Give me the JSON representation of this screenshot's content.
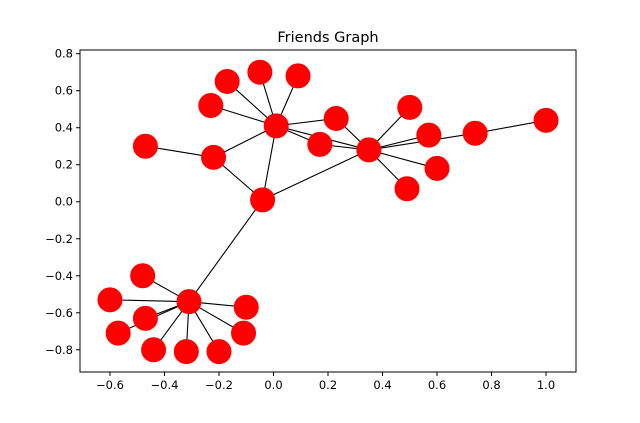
{
  "chart_data": {
    "type": "scatter",
    "title": "Friends Graph",
    "xlabel": "",
    "ylabel": "",
    "xlim": [
      -0.71,
      1.11
    ],
    "ylim": [
      -0.92,
      0.82
    ],
    "xticks": [
      -0.6,
      -0.4,
      -0.2,
      0.0,
      0.2,
      0.4,
      0.6,
      0.8,
      1.0
    ],
    "yticks": [
      -0.8,
      -0.6,
      -0.4,
      -0.2,
      0.0,
      0.2,
      0.4,
      0.6,
      0.8
    ],
    "xtick_labels": [
      "−0.6",
      "−0.4",
      "−0.2",
      "0.0",
      "0.2",
      "0.4",
      "0.6",
      "0.8",
      "1.0"
    ],
    "ytick_labels": [
      "−0.8",
      "−0.6",
      "−0.4",
      "−0.2",
      "0.0",
      "0.2",
      "0.4",
      "0.6",
      "0.8"
    ],
    "grid": false,
    "node_color": "#ff0000",
    "edge_color": "#000000",
    "nodes": [
      {
        "x": 0.01,
        "y": 0.41
      },
      {
        "x": -0.05,
        "y": 0.7
      },
      {
        "x": 0.09,
        "y": 0.68
      },
      {
        "x": -0.17,
        "y": 0.65
      },
      {
        "x": -0.23,
        "y": 0.52
      },
      {
        "x": 0.23,
        "y": 0.45
      },
      {
        "x": 0.17,
        "y": 0.31
      },
      {
        "x": -0.22,
        "y": 0.24
      },
      {
        "x": -0.47,
        "y": 0.3
      },
      {
        "x": -0.04,
        "y": 0.01
      },
      {
        "x": 0.35,
        "y": 0.28
      },
      {
        "x": 0.5,
        "y": 0.51
      },
      {
        "x": 0.57,
        "y": 0.36
      },
      {
        "x": 0.74,
        "y": 0.37
      },
      {
        "x": 1.0,
        "y": 0.44
      },
      {
        "x": 0.6,
        "y": 0.18
      },
      {
        "x": 0.49,
        "y": 0.07
      },
      {
        "x": -0.31,
        "y": -0.54
      },
      {
        "x": -0.48,
        "y": -0.4
      },
      {
        "x": -0.6,
        "y": -0.53
      },
      {
        "x": -0.47,
        "y": -0.63
      },
      {
        "x": -0.57,
        "y": -0.71
      },
      {
        "x": -0.44,
        "y": -0.8
      },
      {
        "x": -0.32,
        "y": -0.81
      },
      {
        "x": -0.2,
        "y": -0.81
      },
      {
        "x": -0.11,
        "y": -0.71
      },
      {
        "x": -0.1,
        "y": -0.57
      }
    ],
    "edges": [
      [
        0,
        1
      ],
      [
        0,
        2
      ],
      [
        0,
        3
      ],
      [
        0,
        4
      ],
      [
        0,
        5
      ],
      [
        0,
        6
      ],
      [
        0,
        7
      ],
      [
        0,
        9
      ],
      [
        0,
        10
      ],
      [
        7,
        8
      ],
      [
        7,
        9
      ],
      [
        9,
        10
      ],
      [
        9,
        17
      ],
      [
        5,
        10
      ],
      [
        6,
        10
      ],
      [
        10,
        11
      ],
      [
        10,
        12
      ],
      [
        10,
        13
      ],
      [
        10,
        15
      ],
      [
        10,
        16
      ],
      [
        13,
        14
      ],
      [
        17,
        18
      ],
      [
        17,
        19
      ],
      [
        17,
        20
      ],
      [
        17,
        21
      ],
      [
        17,
        22
      ],
      [
        17,
        23
      ],
      [
        17,
        24
      ],
      [
        17,
        25
      ],
      [
        17,
        26
      ]
    ]
  }
}
